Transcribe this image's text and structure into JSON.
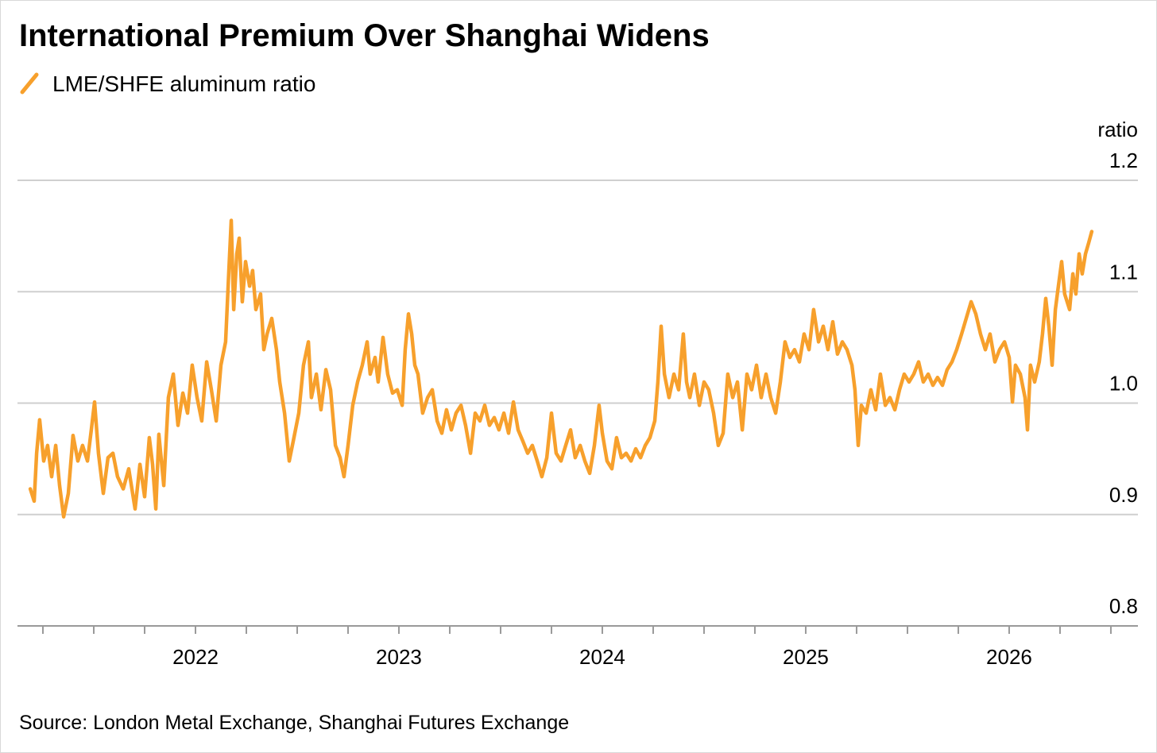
{
  "chart_data": {
    "type": "line",
    "title": "International Premium Over Shanghai Widens",
    "source": "Source: London Metal Exchange, Shanghai Futures Exchange",
    "y_axis_label": "ratio",
    "xlim": [
      2021.125,
      2026.633
    ],
    "xticks": [
      2022,
      2023,
      2024,
      2025,
      2026
    ],
    "x_minor_ticks": [
      2021.25,
      2021.5,
      2021.75,
      2022.25,
      2022.5,
      2022.75,
      2023.25,
      2023.5,
      2023.75,
      2024.25,
      2024.5,
      2024.75,
      2025.25,
      2025.5,
      2025.75,
      2026.25,
      2026.5
    ],
    "ylim": [
      0.8,
      1.2
    ],
    "yticks": [
      0.8,
      0.9,
      {
        "value": 1,
        "label": "1.0"
      },
      1.1,
      1.2
    ],
    "grid": true,
    "legend": "top-left",
    "x": [
      2021.188,
      2021.207,
      2021.219,
      2021.234,
      2021.254,
      2021.273,
      2021.293,
      2021.313,
      2021.332,
      2021.352,
      2021.375,
      2021.398,
      2021.422,
      2021.445,
      2021.469,
      2021.488,
      2021.504,
      2021.523,
      2021.547,
      2021.57,
      2021.594,
      2021.617,
      2021.645,
      2021.672,
      2021.703,
      2021.727,
      2021.75,
      2021.773,
      2021.789,
      2021.805,
      2021.82,
      2021.844,
      2021.867,
      2021.891,
      2021.914,
      2021.938,
      2021.961,
      2021.984,
      2022.008,
      2022.031,
      2022.055,
      2022.078,
      2022.102,
      2022.125,
      2022.148,
      2022.164,
      2022.176,
      2022.188,
      2022.203,
      2022.215,
      2022.23,
      2022.246,
      2022.266,
      2022.281,
      2022.297,
      2022.32,
      2022.336,
      2022.352,
      2022.375,
      2022.398,
      2022.414,
      2022.438,
      2022.461,
      2022.484,
      2022.508,
      2022.531,
      2022.555,
      2022.57,
      2022.594,
      2022.617,
      2022.641,
      2022.664,
      2022.688,
      2022.711,
      2022.73,
      2022.75,
      2022.773,
      2022.797,
      2022.82,
      2022.844,
      2022.859,
      2022.883,
      2022.898,
      2022.922,
      2022.945,
      2022.969,
      2022.992,
      2023.016,
      2023.031,
      2023.047,
      2023.063,
      2023.078,
      2023.094,
      2023.117,
      2023.141,
      2023.164,
      2023.188,
      2023.211,
      2023.234,
      2023.258,
      2023.281,
      2023.305,
      2023.328,
      2023.352,
      2023.375,
      2023.398,
      2023.422,
      2023.445,
      2023.469,
      2023.492,
      2023.516,
      2023.539,
      2023.563,
      2023.586,
      2023.609,
      2023.633,
      2023.656,
      2023.68,
      2023.703,
      2023.727,
      2023.75,
      2023.773,
      2023.797,
      2023.82,
      2023.844,
      2023.867,
      2023.891,
      2023.914,
      2023.938,
      2023.961,
      2023.984,
      2024.0,
      2024.023,
      2024.047,
      2024.07,
      2024.094,
      2024.117,
      2024.141,
      2024.164,
      2024.188,
      2024.211,
      2024.234,
      2024.258,
      2024.273,
      2024.289,
      2024.305,
      2024.328,
      2024.352,
      2024.375,
      2024.398,
      2024.414,
      2024.43,
      2024.453,
      2024.477,
      2024.5,
      2024.523,
      2024.547,
      2024.57,
      2024.594,
      2024.617,
      2024.641,
      2024.664,
      2024.688,
      2024.711,
      2024.734,
      2024.758,
      2024.781,
      2024.805,
      2024.828,
      2024.852,
      2024.875,
      2024.898,
      2024.922,
      2024.945,
      2024.969,
      2024.992,
      2025.016,
      2025.039,
      2025.063,
      2025.086,
      2025.109,
      2025.133,
      2025.156,
      2025.18,
      2025.203,
      2025.227,
      2025.242,
      2025.258,
      2025.273,
      2025.297,
      2025.32,
      2025.344,
      2025.367,
      2025.391,
      2025.414,
      2025.438,
      2025.461,
      2025.484,
      2025.508,
      2025.531,
      2025.555,
      2025.578,
      2025.602,
      2025.625,
      2025.648,
      2025.672,
      2025.695,
      2025.719,
      2025.742,
      2025.766,
      2025.789,
      2025.813,
      2025.836,
      2025.859,
      2025.883,
      2025.906,
      2025.93,
      2025.953,
      2025.977,
      2026.0,
      2026.016,
      2026.031,
      2026.055,
      2026.078,
      2026.09,
      2026.105,
      2026.125,
      2026.148,
      2026.164,
      2026.18,
      2026.195,
      2026.211,
      2026.227,
      2026.242,
      2026.258,
      2026.273,
      2026.297,
      2026.313,
      2026.328,
      2026.344,
      2026.359,
      2026.375,
      2026.391,
      2026.406
    ],
    "series": [
      {
        "name": "LME/SHFE aluminum ratio",
        "color": "#f7a02c",
        "values": [
          0.923,
          0.912,
          0.955,
          0.985,
          0.948,
          0.962,
          0.934,
          0.962,
          0.926,
          0.898,
          0.919,
          0.971,
          0.948,
          0.962,
          0.948,
          0.976,
          1.001,
          0.955,
          0.919,
          0.951,
          0.955,
          0.934,
          0.923,
          0.941,
          0.905,
          0.945,
          0.916,
          0.969,
          0.945,
          0.905,
          0.972,
          0.926,
          1.005,
          1.026,
          0.98,
          1.009,
          0.991,
          1.034,
          1.005,
          0.984,
          1.037,
          1.012,
          0.984,
          1.034,
          1.055,
          1.119,
          1.164,
          1.084,
          1.134,
          1.148,
          1.091,
          1.127,
          1.105,
          1.119,
          1.084,
          1.098,
          1.048,
          1.062,
          1.076,
          1.048,
          1.019,
          0.991,
          0.948,
          0.969,
          0.991,
          1.034,
          1.055,
          1.005,
          1.026,
          0.994,
          1.03,
          1.012,
          0.962,
          0.951,
          0.934,
          0.962,
          0.998,
          1.019,
          1.034,
          1.055,
          1.026,
          1.041,
          1.019,
          1.059,
          1.026,
          1.009,
          1.012,
          0.998,
          1.048,
          1.08,
          1.062,
          1.034,
          1.026,
          0.991,
          1.005,
          1.012,
          0.984,
          0.973,
          0.994,
          0.976,
          0.991,
          0.998,
          0.98,
          0.955,
          0.991,
          0.984,
          0.998,
          0.98,
          0.987,
          0.976,
          0.991,
          0.973,
          1.001,
          0.976,
          0.966,
          0.955,
          0.962,
          0.948,
          0.934,
          0.951,
          0.991,
          0.955,
          0.948,
          0.962,
          0.976,
          0.951,
          0.962,
          0.948,
          0.937,
          0.962,
          0.998,
          0.973,
          0.948,
          0.941,
          0.969,
          0.951,
          0.955,
          0.948,
          0.959,
          0.951,
          0.962,
          0.969,
          0.984,
          1.019,
          1.069,
          1.026,
          1.005,
          1.026,
          1.012,
          1.062,
          1.019,
          1.005,
          1.026,
          0.998,
          1.019,
          1.012,
          0.991,
          0.962,
          0.973,
          1.026,
          1.005,
          1.019,
          0.976,
          1.026,
          1.012,
          1.034,
          1.005,
          1.026,
          1.005,
          0.991,
          1.019,
          1.055,
          1.041,
          1.048,
          1.037,
          1.062,
          1.048,
          1.084,
          1.055,
          1.069,
          1.048,
          1.073,
          1.044,
          1.055,
          1.048,
          1.034,
          1.012,
          0.962,
          0.998,
          0.991,
          1.012,
          0.994,
          1.026,
          0.998,
          1.005,
          0.994,
          1.012,
          1.026,
          1.019,
          1.026,
          1.037,
          1.019,
          1.026,
          1.016,
          1.023,
          1.016,
          1.03,
          1.037,
          1.048,
          1.062,
          1.076,
          1.091,
          1.08,
          1.062,
          1.048,
          1.062,
          1.037,
          1.048,
          1.055,
          1.041,
          1.001,
          1.034,
          1.026,
          1.005,
          0.976,
          1.034,
          1.019,
          1.037,
          1.062,
          1.094,
          1.069,
          1.034,
          1.084,
          1.105,
          1.127,
          1.098,
          1.084,
          1.116,
          1.098,
          1.134,
          1.116,
          1.134,
          1.144,
          1.154
        ]
      }
    ]
  }
}
